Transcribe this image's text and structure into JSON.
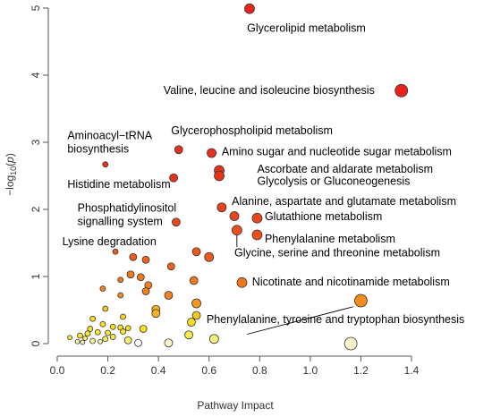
{
  "chart_data": {
    "type": "scatter",
    "title": "",
    "xlabel": "Pathway Impact",
    "ylabel": "−log10(p)",
    "ylabel_main": "−log",
    "ylabel_sub": "10",
    "ylabel_open": "(",
    "ylabel_var": "p",
    "ylabel_close": ")",
    "xlim": [
      0,
      1.4
    ],
    "ylim": [
      0,
      5
    ],
    "x_ticks": [
      "0.0",
      "0.2",
      "0.4",
      "0.6",
      "0.8",
      "1.0",
      "1.2",
      "1.4"
    ],
    "y_ticks": [
      "0",
      "1",
      "2",
      "3",
      "4",
      "5"
    ],
    "grid": false,
    "color_scale": "low p-value red, high p-value pale yellow",
    "points": [
      {
        "x": 0.76,
        "y": 4.99,
        "r": 5.5,
        "color": "#e8231c"
      },
      {
        "x": 1.36,
        "y": 3.77,
        "r": 7,
        "color": "#e8231c"
      },
      {
        "x": 0.48,
        "y": 2.89,
        "r": 4.5,
        "color": "#e8301c"
      },
      {
        "x": 0.61,
        "y": 2.84,
        "r": 5,
        "color": "#e8301c"
      },
      {
        "x": 0.19,
        "y": 2.67,
        "r": 3,
        "color": "#e8301c"
      },
      {
        "x": 0.46,
        "y": 2.47,
        "r": 4.5,
        "color": "#e8331c"
      },
      {
        "x": 0.64,
        "y": 2.58,
        "r": 5.5,
        "color": "#e8331c"
      },
      {
        "x": 0.64,
        "y": 2.5,
        "r": 5.5,
        "color": "#e8331c"
      },
      {
        "x": 0.65,
        "y": 2.03,
        "r": 5,
        "color": "#e9421c"
      },
      {
        "x": 0.7,
        "y": 1.9,
        "r": 5,
        "color": "#ea461c"
      },
      {
        "x": 0.79,
        "y": 1.87,
        "r": 5.5,
        "color": "#ea461c"
      },
      {
        "x": 0.47,
        "y": 1.81,
        "r": 4.5,
        "color": "#ea461c"
      },
      {
        "x": 0.71,
        "y": 1.69,
        "r": 5.5,
        "color": "#eb501c"
      },
      {
        "x": 0.79,
        "y": 1.62,
        "r": 5.5,
        "color": "#eb501c"
      },
      {
        "x": 0.23,
        "y": 1.37,
        "r": 3,
        "color": "#ec5a1c"
      },
      {
        "x": 0.55,
        "y": 1.37,
        "r": 4.5,
        "color": "#ec5a1c"
      },
      {
        "x": 0.6,
        "y": 1.29,
        "r": 5,
        "color": "#ec5a1c"
      },
      {
        "x": 0.3,
        "y": 1.29,
        "r": 4,
        "color": "#ec5a1c"
      },
      {
        "x": 0.35,
        "y": 1.25,
        "r": 4,
        "color": "#ed641c"
      },
      {
        "x": 0.45,
        "y": 1.15,
        "r": 4,
        "color": "#ed641c"
      },
      {
        "x": 0.29,
        "y": 1.03,
        "r": 4,
        "color": "#ef781d"
      },
      {
        "x": 0.33,
        "y": 0.99,
        "r": 4,
        "color": "#ef781d"
      },
      {
        "x": 0.54,
        "y": 0.94,
        "r": 4.5,
        "color": "#ef781d"
      },
      {
        "x": 0.73,
        "y": 0.91,
        "r": 5.5,
        "color": "#ef781d"
      },
      {
        "x": 0.25,
        "y": 0.95,
        "r": 3,
        "color": "#ef781d"
      },
      {
        "x": 0.36,
        "y": 0.87,
        "r": 4,
        "color": "#f0821e"
      },
      {
        "x": 0.18,
        "y": 0.82,
        "r": 3,
        "color": "#f0821e"
      },
      {
        "x": 0.35,
        "y": 0.78,
        "r": 4,
        "color": "#f0821e"
      },
      {
        "x": 0.44,
        "y": 0.72,
        "r": 4.5,
        "color": "#f0821e"
      },
      {
        "x": 0.25,
        "y": 0.72,
        "r": 3,
        "color": "#f28c1e"
      },
      {
        "x": 1.2,
        "y": 0.64,
        "r": 7,
        "color": "#f28c1e"
      },
      {
        "x": 0.55,
        "y": 0.6,
        "r": 5,
        "color": "#f3961f"
      },
      {
        "x": 0.39,
        "y": 0.51,
        "r": 4.5,
        "color": "#f5b41f"
      },
      {
        "x": 0.39,
        "y": 0.45,
        "r": 4.5,
        "color": "#f5b41f"
      },
      {
        "x": 0.19,
        "y": 0.52,
        "r": 3,
        "color": "#f6c81f"
      },
      {
        "x": 0.55,
        "y": 0.42,
        "r": 4.5,
        "color": "#f6c81f"
      },
      {
        "x": 0.26,
        "y": 0.4,
        "r": 3,
        "color": "#f7d21f"
      },
      {
        "x": 0.14,
        "y": 0.37,
        "r": 3,
        "color": "#f7dc1f"
      },
      {
        "x": 0.53,
        "y": 0.32,
        "r": 4.5,
        "color": "#f7dc1f"
      },
      {
        "x": 0.18,
        "y": 0.29,
        "r": 3,
        "color": "#f8e01f"
      },
      {
        "x": 0.22,
        "y": 0.25,
        "r": 3,
        "color": "#f8e01f"
      },
      {
        "x": 0.25,
        "y": 0.24,
        "r": 3,
        "color": "#f8e01f"
      },
      {
        "x": 0.28,
        "y": 0.23,
        "r": 3,
        "color": "#f8e01f"
      },
      {
        "x": 0.34,
        "y": 0.22,
        "r": 4,
        "color": "#f8e01f"
      },
      {
        "x": 0.13,
        "y": 0.22,
        "r": 3,
        "color": "#f8e01f"
      },
      {
        "x": 0.16,
        "y": 0.17,
        "r": 3,
        "color": "#f9e62f"
      },
      {
        "x": 0.2,
        "y": 0.16,
        "r": 3,
        "color": "#f9e62f"
      },
      {
        "x": 0.26,
        "y": 0.18,
        "r": 3,
        "color": "#f9e62f"
      },
      {
        "x": 0.12,
        "y": 0.15,
        "r": 3,
        "color": "#f9e62f"
      },
      {
        "x": 0.09,
        "y": 0.12,
        "r": 3,
        "color": "#f9e62f"
      },
      {
        "x": 0.52,
        "y": 0.13,
        "r": 4.5,
        "color": "#f9ea45"
      },
      {
        "x": 0.22,
        "y": 0.1,
        "r": 3,
        "color": "#f9ea45"
      },
      {
        "x": 0.05,
        "y": 0.09,
        "r": 2.5,
        "color": "#f9ea45"
      },
      {
        "x": 0.11,
        "y": 0.08,
        "r": 2.5,
        "color": "#faee60"
      },
      {
        "x": 0.19,
        "y": 0.07,
        "r": 3,
        "color": "#faee60"
      },
      {
        "x": 0.28,
        "y": 0.05,
        "r": 4,
        "color": "#faf07a"
      },
      {
        "x": 0.62,
        "y": 0.07,
        "r": 5,
        "color": "#faf07a"
      },
      {
        "x": 0.14,
        "y": 0.04,
        "r": 3,
        "color": "#fbf294"
      },
      {
        "x": 0.08,
        "y": 0.03,
        "r": 2.5,
        "color": "#fbf4a8"
      },
      {
        "x": 0.17,
        "y": 0.03,
        "r": 2.5,
        "color": "#fbf4a8"
      },
      {
        "x": 0.1,
        "y": 0.02,
        "r": 2.5,
        "color": "#fcf6bb"
      },
      {
        "x": 0.32,
        "y": 0.01,
        "r": 4,
        "color": "#ffffff"
      },
      {
        "x": 0.44,
        "y": 0.01,
        "r": 4.5,
        "color": "#fcf6cc"
      },
      {
        "x": 1.16,
        "y": 0.0,
        "r": 7,
        "color": "#fcf6cc"
      }
    ],
    "annotations": [
      {
        "lines": [
          "Glycerolipid metabolism"
        ],
        "x": 0.75,
        "y": 4.65,
        "anchor": "start"
      },
      {
        "lines": [
          "Valine, leucine and isoleucine biosynthesis"
        ],
        "x": 0.42,
        "y": 3.72,
        "anchor": "start"
      },
      {
        "lines": [
          "Aminoacyl−tRNA",
          "biosynthesis"
        ],
        "x": 0.04,
        "y": 3.05,
        "anchor": "start"
      },
      {
        "lines": [
          "Glycerophospholipid metabolism"
        ],
        "x": 0.45,
        "y": 3.12,
        "anchor": "start"
      },
      {
        "lines": [
          "Amino sugar and nucleotide sugar metabolism"
        ],
        "x": 0.65,
        "y": 2.81,
        "anchor": "start"
      },
      {
        "lines": [
          "Ascorbate and aldarate metabolism"
        ],
        "x": 0.79,
        "y": 2.55,
        "anchor": "start"
      },
      {
        "lines": [
          "Glycolysis or Gluconeogenesis"
        ],
        "x": 0.79,
        "y": 2.37,
        "anchor": "start"
      },
      {
        "lines": [
          "Histidine metabolism"
        ],
        "x": 0.04,
        "y": 2.32,
        "anchor": "start"
      },
      {
        "lines": [
          "Alanine, aspartate and glutamate metabolism"
        ],
        "x": 0.69,
        "y": 2.07,
        "anchor": "start"
      },
      {
        "lines": [
          "Phosphatidylinositol",
          "signalling system"
        ],
        "x": 0.08,
        "y": 1.97,
        "anchor": "start"
      },
      {
        "lines": [
          "Glutathione metabolism"
        ],
        "x": 0.82,
        "y": 1.84,
        "anchor": "start"
      },
      {
        "lines": [
          "Lysine degradation"
        ],
        "x": 0.02,
        "y": 1.47,
        "anchor": "start"
      },
      {
        "lines": [
          "Phenylalanine metabolism"
        ],
        "x": 0.82,
        "y": 1.51,
        "anchor": "start"
      },
      {
        "lines": [
          "Glycine, serine and threonine metabolism"
        ],
        "x": 0.7,
        "y": 1.3,
        "anchor": "start"
      },
      {
        "lines": [
          "Nicotinate and nicotinamide metabolism"
        ],
        "x": 0.77,
        "y": 0.87,
        "anchor": "start"
      },
      {
        "lines": [
          "Phenylalanine, tyrosine and tryptophan biosynthesis"
        ],
        "x": 0.59,
        "y": 0.31,
        "anchor": "start"
      }
    ],
    "leaders": [
      {
        "from": [
          0.75,
          0.14
        ],
        "to": [
          1.17,
          0.55
        ]
      },
      {
        "from": [
          0.71,
          1.62
        ],
        "to": [
          0.71,
          1.44
        ]
      }
    ]
  }
}
